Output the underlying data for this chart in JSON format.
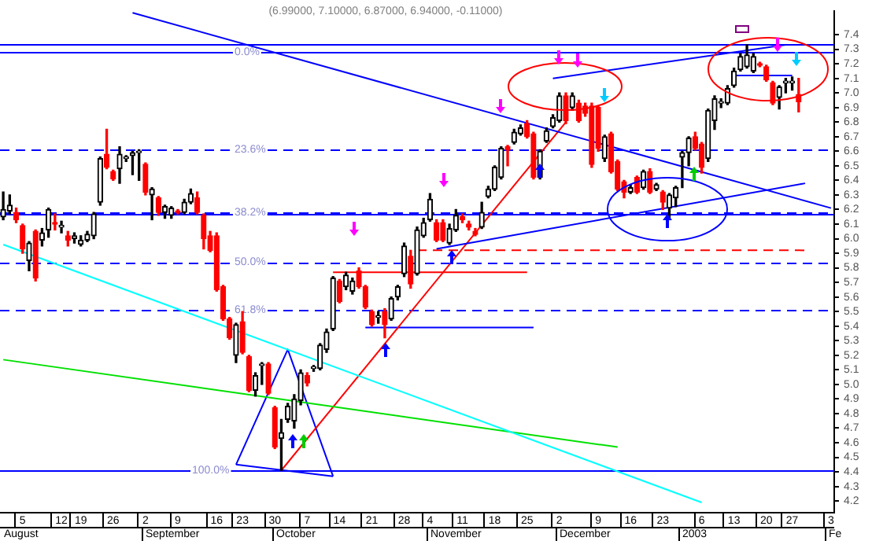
{
  "chart_data": {
    "type": "candlestick",
    "title": "(6.99000, 7.10000, 6.87000, 6.94000, -0.11000)",
    "categories": [
      null,
      null,
      null,
      "5",
      null,
      null,
      null,
      null,
      null,
      "12",
      null,
      null,
      "19",
      null,
      null,
      null,
      null,
      "26",
      null,
      null,
      null,
      null,
      "2",
      null,
      null,
      null,
      null,
      "9",
      null,
      null,
      null,
      null,
      null,
      "16",
      null,
      null,
      null,
      "23",
      null,
      null,
      null,
      null,
      "30",
      null,
      null,
      null,
      null,
      "7",
      null,
      null,
      null,
      null,
      "14",
      null,
      null,
      null,
      null,
      "21",
      null,
      null,
      null,
      null,
      "28",
      null,
      null,
      null,
      "4",
      null,
      null,
      null,
      null,
      "11",
      null,
      null,
      null,
      null,
      "18",
      null,
      null,
      null,
      null,
      "25",
      null,
      null,
      null,
      null,
      "2",
      null,
      null,
      null,
      null,
      null,
      "9",
      null,
      null,
      null,
      null,
      "16",
      null,
      null,
      null,
      null,
      "23",
      null,
      null,
      null,
      null,
      null,
      "6",
      null,
      null,
      null,
      null,
      "13",
      null,
      null,
      null,
      null,
      "20",
      null,
      null,
      null,
      "27",
      null,
      null,
      null,
      null,
      null,
      "3"
    ],
    "ohlc": [
      [
        6.15,
        6.32,
        6.13,
        6.2
      ],
      [
        6.19,
        6.3,
        6.17,
        6.23
      ],
      [
        6.18,
        6.21,
        6.11,
        6.13
      ],
      [
        6.09,
        6.1,
        5.9,
        5.93
      ],
      [
        5.85,
        5.98,
        5.78,
        5.97
      ],
      [
        6.05,
        6.06,
        5.71,
        5.73
      ],
      [
        5.99,
        6.07,
        5.95,
        6.04
      ],
      [
        6.06,
        6.21,
        6.01,
        6.2
      ],
      [
        6.11,
        6.17,
        6.06,
        6.1
      ],
      [
        6.08,
        6.12,
        6.04,
        6.08
      ],
      [
        6.02,
        6.05,
        5.95,
        5.99
      ],
      [
        6.0,
        6.04,
        5.97,
        6.02
      ],
      [
        5.96,
        6.02,
        5.95,
        5.99
      ],
      [
        5.99,
        6.05,
        5.98,
        6.03
      ],
      [
        6.02,
        6.18,
        6.0,
        6.17
      ],
      [
        6.25,
        6.56,
        6.23,
        6.55
      ],
      [
        6.58,
        6.75,
        6.48,
        6.49
      ],
      [
        6.46,
        6.47,
        6.4,
        6.41
      ],
      [
        6.48,
        6.63,
        6.38,
        6.58
      ],
      [
        6.55,
        6.57,
        6.53,
        6.55
      ],
      [
        6.57,
        6.6,
        6.44,
        6.59
      ],
      [
        6.59,
        6.61,
        6.4,
        6.59
      ],
      [
        6.51,
        6.52,
        6.3,
        6.32
      ],
      [
        6.3,
        6.35,
        6.13,
        6.34
      ],
      [
        6.28,
        6.29,
        6.16,
        6.18
      ],
      [
        6.18,
        6.23,
        6.14,
        6.22
      ],
      [
        6.16,
        6.22,
        6.14,
        6.21
      ],
      [
        6.19,
        6.2,
        6.17,
        6.18
      ],
      [
        6.18,
        6.27,
        6.17,
        6.25
      ],
      [
        6.25,
        6.34,
        6.24,
        6.31
      ],
      [
        6.28,
        6.32,
        6.17,
        6.18
      ],
      [
        6.16,
        6.17,
        5.93,
        6.0
      ],
      [
        6.02,
        6.05,
        5.91,
        5.92
      ],
      [
        6.02,
        6.04,
        5.64,
        5.65
      ],
      [
        5.67,
        5.68,
        5.44,
        5.45
      ],
      [
        5.45,
        5.46,
        5.31,
        5.32
      ],
      [
        5.2,
        5.42,
        5.15,
        5.41
      ],
      [
        5.43,
        5.5,
        5.21,
        5.22
      ],
      [
        5.19,
        5.2,
        4.95,
        4.96
      ],
      [
        4.96,
        5.08,
        4.92,
        5.06
      ],
      [
        5.13,
        5.15,
        5.0,
        5.13
      ],
      [
        5.14,
        5.15,
        4.93,
        4.94
      ],
      [
        4.84,
        4.85,
        4.56,
        4.57
      ],
      [
        4.63,
        4.76,
        4.41,
        4.67
      ],
      [
        4.76,
        4.87,
        4.74,
        4.85
      ],
      [
        4.75,
        4.93,
        4.7,
        4.9
      ],
      [
        4.89,
        5.1,
        4.86,
        5.08
      ],
      [
        5.06,
        5.08,
        4.99,
        5.01
      ],
      [
        5.11,
        5.13,
        5.09,
        5.11
      ],
      [
        5.11,
        5.28,
        5.1,
        5.27
      ],
      [
        5.24,
        5.38,
        5.22,
        5.36
      ],
      [
        5.38,
        5.74,
        5.37,
        5.73
      ],
      [
        5.71,
        5.72,
        5.56,
        5.57
      ],
      [
        5.67,
        5.77,
        5.65,
        5.75
      ],
      [
        5.64,
        5.73,
        5.62,
        5.71
      ],
      [
        5.78,
        5.8,
        5.66,
        5.67
      ],
      [
        5.67,
        5.68,
        5.52,
        5.53
      ],
      [
        5.5,
        5.51,
        5.4,
        5.41
      ],
      [
        5.46,
        5.5,
        5.42,
        5.46
      ],
      [
        5.5,
        5.52,
        5.32,
        5.41
      ],
      [
        5.45,
        5.6,
        5.44,
        5.59
      ],
      [
        5.6,
        5.68,
        5.58,
        5.67
      ],
      [
        5.76,
        5.97,
        5.74,
        5.95
      ],
      [
        5.88,
        5.92,
        5.66,
        5.69
      ],
      [
        5.76,
        6.08,
        5.75,
        6.06
      ],
      [
        6.02,
        6.14,
        6.01,
        6.11
      ],
      [
        6.13,
        6.31,
        6.12,
        6.27
      ],
      [
        6.11,
        6.13,
        5.98,
        5.99
      ],
      [
        6.11,
        6.13,
        5.98,
        5.99
      ],
      [
        5.97,
        6.1,
        5.96,
        6.07
      ],
      [
        6.06,
        6.2,
        6.05,
        6.16
      ],
      [
        6.15,
        6.17,
        6.11,
        6.13
      ],
      [
        6.1,
        6.12,
        6.06,
        6.08
      ],
      [
        6.05,
        6.07,
        6.02,
        6.03
      ],
      [
        6.08,
        6.25,
        6.07,
        6.18
      ],
      [
        6.29,
        6.36,
        6.28,
        6.34
      ],
      [
        6.34,
        6.5,
        6.33,
        6.49
      ],
      [
        6.42,
        6.63,
        6.41,
        6.62
      ],
      [
        6.63,
        6.64,
        6.5,
        6.61
      ],
      [
        6.66,
        6.75,
        6.65,
        6.73
      ],
      [
        6.72,
        6.78,
        6.71,
        6.76
      ],
      [
        6.79,
        6.81,
        6.69,
        6.7
      ],
      [
        6.72,
        6.73,
        6.41,
        6.42
      ],
      [
        6.42,
        6.61,
        6.41,
        6.6
      ],
      [
        6.67,
        6.76,
        6.66,
        6.74
      ],
      [
        6.77,
        6.85,
        6.76,
        6.83
      ],
      [
        6.81,
        7.0,
        6.8,
        6.98
      ],
      [
        6.98,
        7.0,
        6.79,
        6.81
      ],
      [
        6.9,
        7.0,
        6.88,
        6.98
      ],
      [
        6.93,
        6.95,
        6.8,
        6.81
      ],
      [
        6.91,
        6.93,
        6.84,
        6.86
      ],
      [
        6.91,
        6.93,
        6.49,
        6.51
      ],
      [
        6.9,
        6.91,
        6.6,
        6.62
      ],
      [
        6.55,
        6.71,
        6.53,
        6.7
      ],
      [
        6.72,
        6.73,
        6.45,
        6.46
      ],
      [
        6.53,
        6.54,
        6.33,
        6.34
      ],
      [
        6.39,
        6.4,
        6.28,
        6.32
      ],
      [
        6.32,
        6.37,
        6.31,
        6.35
      ],
      [
        6.42,
        6.43,
        6.31,
        6.32
      ],
      [
        6.35,
        6.47,
        6.34,
        6.46
      ],
      [
        6.46,
        6.48,
        6.31,
        6.32
      ],
      [
        6.34,
        6.38,
        6.33,
        6.37
      ],
      [
        6.32,
        6.33,
        6.2,
        6.25
      ],
      [
        6.21,
        6.31,
        6.13,
        6.3
      ],
      [
        6.28,
        6.36,
        6.22,
        6.35
      ],
      [
        6.56,
        6.6,
        6.35,
        6.59
      ],
      [
        6.59,
        6.7,
        6.5,
        6.69
      ],
      [
        6.7,
        6.73,
        6.61,
        6.62
      ],
      [
        6.65,
        6.66,
        6.45,
        6.49
      ],
      [
        6.55,
        6.89,
        6.53,
        6.88
      ],
      [
        6.81,
        6.98,
        6.75,
        6.96
      ],
      [
        6.93,
        6.96,
        6.9,
        6.93
      ],
      [
        6.93,
        7.05,
        6.92,
        7.03
      ],
      [
        7.05,
        7.17,
        7.04,
        7.15
      ],
      [
        7.16,
        7.27,
        7.15,
        7.25
      ],
      [
        7.18,
        7.33,
        7.17,
        7.26
      ],
      [
        7.15,
        7.27,
        7.14,
        7.25
      ],
      [
        7.2,
        7.21,
        7.18,
        7.19
      ],
      [
        7.18,
        7.19,
        7.08,
        7.09
      ],
      [
        7.07,
        7.08,
        6.92,
        6.93
      ],
      [
        6.97,
        7.05,
        6.89,
        7.04
      ],
      [
        7.07,
        7.1,
        7.0,
        7.07
      ],
      [
        7.07,
        7.11,
        7.02,
        7.07
      ],
      [
        6.99,
        7.1,
        6.87,
        6.94
      ],
      null,
      null,
      null,
      null,
      null
    ],
    "series": [
      {
        "type": "line",
        "color": "#0000ff",
        "values": [
          null,
          null,
          null,
          null,
          null,
          null,
          null,
          null,
          null,
          null,
          null,
          null,
          null,
          null,
          null,
          null,
          null,
          null,
          null,
          null,
          7.55,
          null,
          null,
          null,
          null,
          null,
          null,
          null,
          null,
          null,
          null,
          null,
          null,
          null,
          null,
          null,
          null,
          null,
          null,
          null,
          null,
          null,
          null,
          null,
          null,
          null,
          null,
          null,
          null,
          null,
          null,
          null,
          null,
          null,
          null,
          null,
          null,
          null,
          null,
          null,
          null,
          null,
          null,
          null,
          null,
          null,
          null,
          null,
          null,
          null,
          null,
          null,
          null,
          null,
          null,
          null,
          null,
          null,
          null,
          null,
          null,
          null,
          null,
          null,
          null,
          null,
          null,
          null,
          null,
          null,
          null,
          null,
          null,
          null,
          null,
          null,
          null,
          null,
          null,
          null,
          null,
          null,
          null,
          null,
          null,
          null,
          null,
          null,
          null,
          null,
          null,
          null,
          null,
          null,
          null,
          null,
          null,
          null,
          null,
          null,
          null,
          null,
          null,
          null,
          null,
          null,
          null,
          null,
          6.21
        ]
      },
      {
        "type": "line",
        "color": "#0000ff",
        "values": [
          null,
          null,
          null,
          null,
          null,
          null,
          null,
          null,
          null,
          null,
          null,
          null,
          null,
          null,
          null,
          null,
          null,
          null,
          null,
          null,
          null,
          null,
          null,
          null,
          null,
          null,
          null,
          null,
          null,
          null,
          null,
          null,
          null,
          null,
          null,
          null,
          null,
          null,
          null,
          null,
          null,
          null,
          null,
          null,
          null,
          null,
          null,
          null,
          null,
          null,
          null,
          null,
          null,
          null,
          null,
          null,
          null,
          null,
          null,
          null,
          null,
          null,
          null,
          null,
          null,
          null,
          null,
          null,
          null,
          null,
          null,
          null,
          null,
          null,
          null,
          null,
          null,
          null,
          null,
          null,
          null,
          null,
          null,
          null,
          null,
          7.1,
          null,
          null,
          null,
          null,
          null,
          null,
          null,
          null,
          null,
          null,
          null,
          null,
          null,
          null,
          null,
          null,
          null,
          null,
          null,
          null,
          null,
          null,
          null,
          null,
          null,
          null,
          null,
          null,
          null,
          null,
          null,
          null,
          null,
          null,
          null,
          7.33,
          null,
          null,
          null,
          null,
          null,
          null,
          null
        ]
      },
      {
        "type": "line",
        "color": "#0000ff",
        "values": [
          null,
          null,
          null,
          null,
          null,
          null,
          null,
          null,
          null,
          null,
          null,
          null,
          null,
          null,
          null,
          null,
          null,
          null,
          null,
          null,
          null,
          null,
          null,
          null,
          null,
          null,
          null,
          null,
          null,
          null,
          null,
          null,
          null,
          null,
          null,
          null,
          null,
          null,
          null,
          null,
          null,
          null,
          null,
          null,
          null,
          null,
          null,
          null,
          null,
          null,
          null,
          null,
          null,
          null,
          null,
          null,
          null,
          null,
          null,
          null,
          null,
          null,
          null,
          null,
          null,
          null,
          null,
          5.93,
          null,
          null,
          null,
          null,
          null,
          null,
          null,
          null,
          null,
          null,
          null,
          null,
          null,
          null,
          null,
          null,
          null,
          null,
          null,
          null,
          null,
          null,
          null,
          null,
          null,
          null,
          null,
          null,
          null,
          null,
          null,
          null,
          null,
          null,
          null,
          null,
          null,
          null,
          null,
          null,
          null,
          null,
          null,
          null,
          null,
          null,
          null,
          null,
          null,
          null,
          null,
          null,
          null,
          null,
          null,
          null,
          6.38,
          null,
          null,
          null,
          null
        ]
      },
      {
        "type": "line",
        "color": "#00ffff",
        "values": [
          5.96,
          null,
          null,
          null,
          null,
          null,
          null,
          null,
          null,
          null,
          null,
          null,
          null,
          null,
          null,
          null,
          null,
          null,
          null,
          null,
          null,
          null,
          null,
          null,
          null,
          null,
          null,
          null,
          null,
          null,
          null,
          null,
          null,
          null,
          null,
          null,
          null,
          null,
          null,
          null,
          null,
          null,
          null,
          null,
          null,
          null,
          null,
          null,
          null,
          null,
          null,
          null,
          null,
          null,
          null,
          null,
          null,
          null,
          null,
          null,
          null,
          null,
          null,
          null,
          null,
          null,
          null,
          null,
          null,
          null,
          null,
          null,
          null,
          null,
          null,
          null,
          null,
          null,
          null,
          null,
          null,
          null,
          null,
          null,
          null,
          null,
          null,
          null,
          null,
          null,
          null,
          null,
          null,
          null,
          null,
          null,
          null,
          null,
          null,
          null,
          null,
          null,
          null,
          null,
          null,
          null,
          null,
          null,
          4.19,
          null,
          null,
          null,
          null,
          null,
          null,
          null,
          null,
          null,
          null,
          null,
          null,
          null,
          null,
          null,
          null,
          null,
          null,
          null,
          null
        ]
      },
      {
        "type": "line",
        "color": "#00e000",
        "values": [
          5.17,
          null,
          null,
          null,
          null,
          null,
          null,
          null,
          null,
          null,
          null,
          null,
          null,
          null,
          null,
          null,
          null,
          null,
          null,
          null,
          null,
          null,
          null,
          null,
          null,
          null,
          null,
          null,
          null,
          null,
          null,
          null,
          null,
          null,
          null,
          null,
          null,
          null,
          null,
          null,
          null,
          null,
          null,
          null,
          null,
          null,
          null,
          null,
          null,
          null,
          null,
          null,
          null,
          null,
          null,
          null,
          null,
          null,
          null,
          null,
          null,
          null,
          null,
          null,
          null,
          null,
          null,
          null,
          null,
          null,
          null,
          null,
          null,
          null,
          null,
          null,
          null,
          null,
          null,
          null,
          null,
          null,
          null,
          null,
          null,
          null,
          null,
          null,
          null,
          null,
          null,
          null,
          null,
          null,
          null,
          4.57,
          null,
          null,
          null,
          null,
          null,
          null,
          null,
          null,
          null,
          null,
          null,
          null,
          null,
          null,
          null,
          null,
          null,
          null,
          null,
          null,
          null,
          null,
          null,
          null,
          null,
          null,
          null,
          null,
          null,
          null,
          null,
          null,
          null
        ]
      },
      {
        "type": "line",
        "color": "#ff0000",
        "values": [
          null,
          null,
          null,
          null,
          null,
          null,
          null,
          null,
          null,
          null,
          null,
          null,
          null,
          null,
          null,
          null,
          null,
          null,
          null,
          null,
          null,
          null,
          null,
          null,
          null,
          null,
          null,
          null,
          null,
          null,
          null,
          null,
          null,
          null,
          null,
          null,
          null,
          null,
          null,
          null,
          null,
          null,
          null,
          4.41,
          null,
          null,
          null,
          null,
          null,
          null,
          null,
          null,
          null,
          null,
          null,
          null,
          null,
          null,
          null,
          null,
          null,
          null,
          null,
          null,
          null,
          null,
          null,
          null,
          null,
          null,
          null,
          null,
          null,
          null,
          null,
          null,
          null,
          null,
          null,
          null,
          null,
          null,
          null,
          null,
          null,
          null,
          null,
          6.8,
          null,
          null,
          null,
          null,
          null,
          null,
          null,
          null,
          null,
          null,
          null,
          null,
          null,
          null,
          null,
          null,
          null,
          null,
          null,
          null,
          null,
          null,
          null,
          null,
          null,
          null,
          null,
          null,
          null,
          null,
          null,
          null,
          null,
          null,
          null,
          null,
          null,
          null,
          null,
          null,
          null
        ]
      },
      {
        "type": "line",
        "color": "#ff0000",
        "values": [
          null,
          null,
          null,
          null,
          null,
          null,
          null,
          null,
          null,
          null,
          null,
          null,
          null,
          null,
          null,
          null,
          null,
          null,
          null,
          null,
          null,
          null,
          null,
          null,
          null,
          null,
          null,
          null,
          null,
          null,
          null,
          null,
          null,
          null,
          null,
          null,
          null,
          null,
          null,
          null,
          null,
          null,
          null,
          null,
          null,
          null,
          null,
          null,
          null,
          null,
          null,
          5.77,
          null,
          null,
          null,
          null,
          null,
          null,
          null,
          null,
          null,
          null,
          null,
          null,
          null,
          null,
          null,
          null,
          null,
          null,
          null,
          null,
          null,
          null,
          null,
          null,
          null,
          null,
          null,
          null,
          null,
          5.77,
          null,
          null,
          null,
          null,
          null,
          null,
          null,
          null,
          null,
          null,
          null,
          null,
          null,
          null,
          null,
          null,
          null,
          null,
          null,
          null,
          null,
          null,
          null,
          null,
          null,
          null,
          null,
          null,
          null,
          null,
          null,
          null,
          null,
          null,
          null,
          null,
          null,
          null,
          null,
          null,
          null,
          null,
          null,
          null,
          null,
          null,
          null
        ]
      },
      {
        "type": "line",
        "color": "#0000ff",
        "values": [
          null,
          null,
          null,
          null,
          null,
          null,
          null,
          null,
          null,
          null,
          null,
          null,
          null,
          null,
          null,
          null,
          null,
          null,
          null,
          null,
          null,
          null,
          null,
          null,
          null,
          null,
          null,
          null,
          null,
          null,
          null,
          null,
          null,
          null,
          null,
          null,
          null,
          null,
          null,
          null,
          null,
          null,
          null,
          null,
          null,
          null,
          null,
          null,
          null,
          null,
          null,
          null,
          null,
          null,
          null,
          null,
          5.39,
          null,
          null,
          null,
          null,
          null,
          null,
          null,
          null,
          null,
          null,
          null,
          null,
          null,
          null,
          null,
          null,
          null,
          null,
          null,
          null,
          null,
          null,
          null,
          null,
          null,
          5.39,
          null,
          null,
          null,
          null,
          null,
          null,
          null,
          null,
          null,
          null,
          null,
          null,
          null,
          null,
          null,
          null,
          null,
          null,
          null,
          null,
          null,
          null,
          null,
          null,
          null,
          null,
          null,
          null,
          null,
          null,
          null,
          null,
          null,
          null,
          null,
          null,
          null,
          null,
          null,
          null,
          null,
          null,
          null,
          null,
          null,
          null
        ]
      },
      {
        "type": "line",
        "color": "#0000ff",
        "values": [
          null,
          null,
          null,
          null,
          null,
          null,
          null,
          null,
          null,
          null,
          null,
          null,
          null,
          null,
          null,
          null,
          null,
          null,
          null,
          null,
          null,
          null,
          null,
          null,
          null,
          null,
          null,
          null,
          null,
          null,
          null,
          null,
          null,
          null,
          null,
          null,
          4.45,
          null,
          null,
          null,
          null,
          null,
          null,
          null,
          5.24,
          null,
          null,
          null,
          null,
          null,
          null,
          4.37,
          null,
          null,
          null,
          null,
          null,
          null,
          null,
          null,
          null,
          null,
          null,
          null,
          null,
          null,
          null,
          null,
          null,
          null,
          null,
          null,
          null,
          null,
          null,
          null,
          null,
          null,
          null,
          null,
          null,
          null,
          null,
          null,
          null,
          null,
          null,
          null,
          null,
          null,
          null,
          null,
          null,
          null,
          null,
          null,
          null,
          null,
          null,
          null,
          null,
          null,
          null,
          null,
          null,
          null,
          null,
          null,
          null,
          null,
          null,
          null,
          null,
          null,
          null,
          null,
          null,
          null,
          null,
          null,
          null,
          null,
          null,
          null,
          null,
          null,
          null,
          null,
          null
        ]
      },
      {
        "type": "line",
        "color": "#0000ff",
        "values": [
          null,
          null,
          null,
          null,
          null,
          null,
          null,
          null,
          null,
          null,
          null,
          null,
          null,
          null,
          null,
          null,
          null,
          null,
          null,
          null,
          null,
          null,
          null,
          null,
          null,
          null,
          null,
          null,
          null,
          null,
          null,
          null,
          null,
          null,
          null,
          null,
          4.45,
          null,
          null,
          null,
          null,
          null,
          null,
          null,
          null,
          null,
          null,
          null,
          null,
          null,
          null,
          4.37,
          null,
          null,
          null,
          null,
          null,
          null,
          null,
          null,
          null,
          null,
          null,
          null,
          null,
          null,
          null,
          null,
          null,
          null,
          null,
          null,
          null,
          null,
          null,
          null,
          null,
          null,
          null,
          null,
          null,
          null,
          null,
          null,
          null,
          null,
          null,
          null,
          null,
          null,
          null,
          null,
          null,
          null,
          null,
          null,
          null,
          null,
          null,
          null,
          null,
          null,
          null,
          null,
          null,
          null,
          null,
          null,
          null,
          null,
          null,
          null,
          null,
          null,
          null,
          null,
          null,
          null,
          null,
          null,
          null,
          null,
          null,
          null,
          null,
          null,
          null,
          null,
          null
        ]
      },
      {
        "type": "line",
        "color": "#ff0000",
        "line_style": "dashed",
        "values": [
          null,
          null,
          null,
          null,
          null,
          null,
          null,
          null,
          null,
          null,
          null,
          null,
          null,
          null,
          null,
          null,
          null,
          null,
          null,
          null,
          null,
          null,
          null,
          null,
          null,
          null,
          null,
          null,
          null,
          null,
          null,
          null,
          null,
          null,
          null,
          null,
          null,
          null,
          null,
          null,
          null,
          null,
          null,
          null,
          null,
          null,
          null,
          null,
          null,
          null,
          null,
          null,
          null,
          null,
          null,
          null,
          null,
          null,
          null,
          null,
          null,
          null,
          null,
          null,
          5.92,
          null,
          null,
          null,
          null,
          null,
          null,
          null,
          null,
          null,
          null,
          null,
          null,
          null,
          null,
          null,
          null,
          null,
          null,
          null,
          null,
          null,
          null,
          null,
          null,
          null,
          null,
          null,
          null,
          null,
          null,
          null,
          null,
          null,
          null,
          null,
          null,
          null,
          null,
          null,
          null,
          null,
          null,
          null,
          null,
          null,
          null,
          null,
          null,
          null,
          null,
          null,
          null,
          null,
          null,
          null,
          null,
          null,
          null,
          null,
          5.92,
          null,
          null,
          null,
          null
        ]
      },
      {
        "type": "line",
        "color": "#0000ff",
        "values": [
          null,
          null,
          null,
          null,
          null,
          null,
          null,
          null,
          null,
          null,
          null,
          null,
          null,
          null,
          null,
          null,
          null,
          null,
          null,
          null,
          null,
          null,
          null,
          null,
          null,
          null,
          null,
          null,
          null,
          null,
          null,
          null,
          null,
          null,
          null,
          null,
          null,
          null,
          null,
          null,
          null,
          null,
          null,
          null,
          null,
          null,
          null,
          null,
          null,
          null,
          null,
          null,
          null,
          null,
          null,
          null,
          null,
          null,
          null,
          null,
          null,
          null,
          null,
          null,
          null,
          null,
          null,
          null,
          null,
          null,
          null,
          null,
          null,
          null,
          null,
          null,
          null,
          null,
          null,
          null,
          null,
          null,
          null,
          null,
          null,
          null,
          null,
          null,
          null,
          null,
          null,
          null,
          null,
          null,
          null,
          null,
          null,
          null,
          null,
          null,
          null,
          null,
          null,
          null,
          null,
          null,
          null,
          null,
          null,
          null,
          null,
          null,
          null,
          7.12,
          null,
          null,
          null,
          null,
          null,
          null,
          null,
          null,
          7.12,
          null,
          null,
          null,
          null,
          null,
          null
        ]
      }
    ],
    "ref_lines": [
      {
        "axis": "y",
        "value": 7.34,
        "color": "#0000ff"
      },
      {
        "axis": "y",
        "value": 7.28,
        "color": "#0000ff"
      },
      {
        "axis": "y",
        "value": 6.61,
        "color": "#0000ff",
        "line_style": "dashed"
      },
      {
        "axis": "y",
        "value": 6.18,
        "color": "#0000ff",
        "line_style": "dashed"
      },
      {
        "axis": "y",
        "value": 6.17,
        "color": "#0000ff"
      },
      {
        "axis": "y",
        "value": 5.84,
        "color": "#0000ff",
        "line_style": "dashed"
      },
      {
        "axis": "y",
        "value": 5.51,
        "color": "#0000ff",
        "line_style": "dashed"
      },
      {
        "axis": "y",
        "value": 4.41,
        "color": "#0000ff"
      }
    ],
    "ylim": [
      4.12,
      7.56
    ],
    "yticks": [
      4.2,
      4.3,
      4.4,
      4.5,
      4.6,
      4.7,
      4.8,
      4.9,
      {
        "value": 5,
        "label": "5.0"
      },
      5.1,
      5.2,
      5.3,
      5.4,
      5.5,
      5.6,
      5.7,
      5.8,
      5.9,
      {
        "value": 6,
        "label": "6.0"
      },
      6.1,
      6.2,
      6.3,
      6.4,
      6.5,
      6.6,
      6.7,
      6.8,
      6.9,
      {
        "value": 7,
        "label": "7.0"
      },
      7.1,
      7.2,
      7.3,
      7.4
    ],
    "annotations": [
      "August",
      "September",
      "October",
      "November",
      "December",
      "2003",
      "Fe",
      {
        "text": "0.0%",
        "y": 7.28
      },
      {
        "text": "23.6%",
        "y": 6.61
      },
      {
        "text": "38.2%",
        "y": 6.18
      },
      {
        "text": "50.0%",
        "y": 5.84
      },
      {
        "text": "61.8%",
        "y": 5.51
      },
      {
        "text": "100.0%",
        "y": 4.41
      }
    ]
  }
}
